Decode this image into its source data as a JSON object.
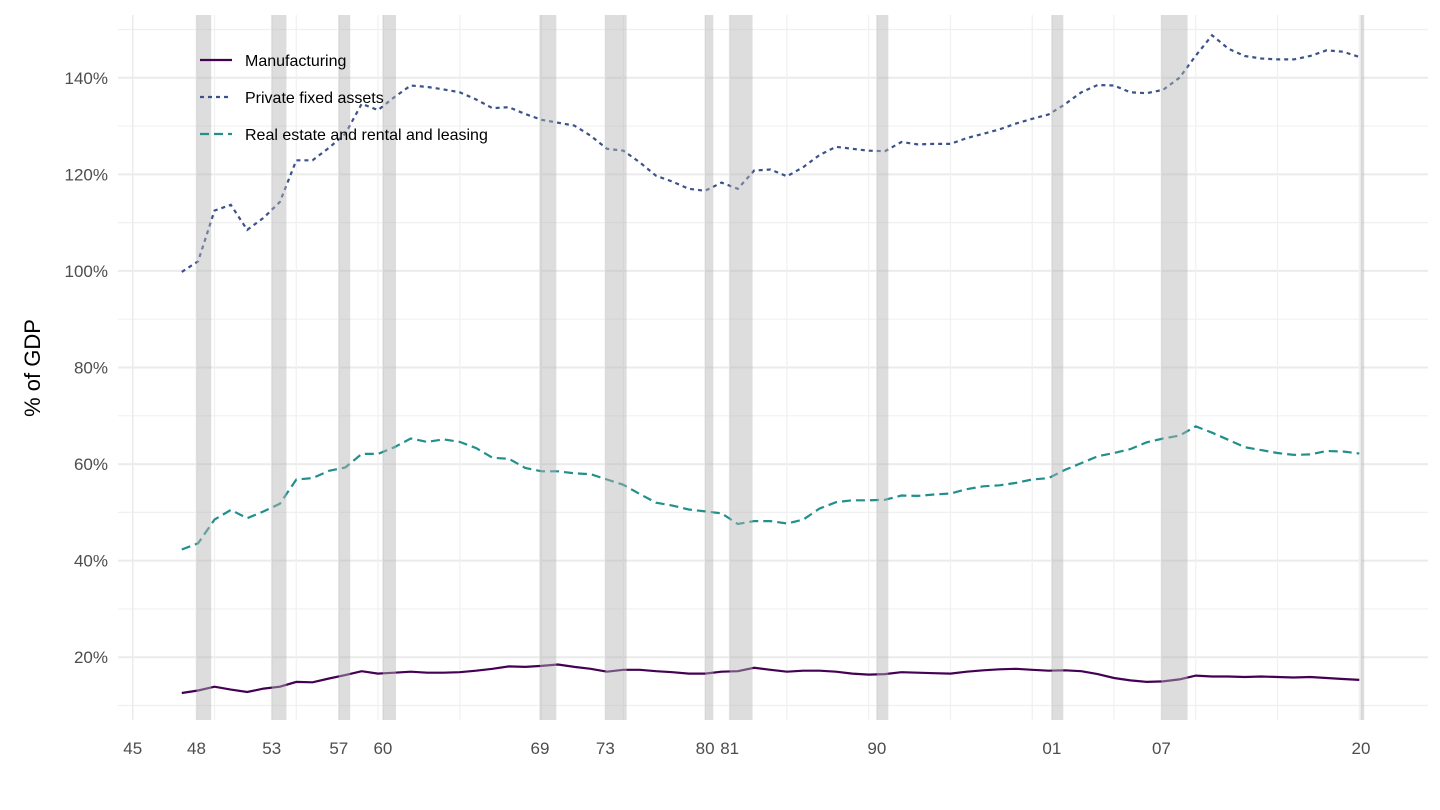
{
  "chart_data": {
    "type": "line",
    "title": "",
    "xlabel": "",
    "ylabel": "% of GDP",
    "ylim": [
      7,
      153
    ],
    "xlim": [
      1944.1,
      2024.2
    ],
    "y_ticks": [
      20,
      40,
      60,
      80,
      100,
      120,
      140
    ],
    "y_tick_labels": [
      "20%",
      "40%",
      "60%",
      "80%",
      "100%",
      "120%",
      "140%"
    ],
    "x_ticks": [
      1945,
      1948.9,
      1953.5,
      1957.6,
      1960.3,
      1969.9,
      1973.9,
      1980.0,
      1981.5,
      1990.5,
      2001.2,
      2007.9,
      2020.1
    ],
    "x_tick_labels": [
      "45",
      "48",
      "53",
      "57",
      "60",
      "69",
      "73",
      "80",
      "81",
      "90",
      "01",
      "07",
      "20"
    ],
    "grid": true,
    "legend_position": "top-left",
    "recession_shading": [
      [
        1948.9,
        1949.8
      ],
      [
        1953.5,
        1954.4
      ],
      [
        1957.6,
        1958.3
      ],
      [
        1960.3,
        1961.1
      ],
      [
        1969.9,
        1970.9
      ],
      [
        1973.9,
        1975.2
      ],
      [
        1980.0,
        1980.5
      ],
      [
        1981.5,
        1982.9
      ],
      [
        1990.5,
        1991.2
      ],
      [
        2001.2,
        2001.9
      ],
      [
        2007.9,
        2009.5
      ],
      [
        2020.1,
        2020.3
      ]
    ],
    "x_start_year": 1947,
    "series": [
      {
        "name": "Manufacturing",
        "color": "#440154",
        "dash": "solid",
        "values": [
          12.6,
          13.1,
          13.9,
          13.3,
          12.8,
          13.5,
          13.9,
          14.9,
          14.8,
          15.6,
          16.3,
          17.1,
          16.6,
          16.8,
          17.0,
          16.8,
          16.8,
          16.9,
          17.2,
          17.6,
          18.1,
          18.0,
          18.2,
          18.5,
          18.0,
          17.6,
          17.0,
          17.4,
          17.4,
          17.1,
          16.9,
          16.6,
          16.6,
          17.0,
          17.1,
          17.8,
          17.4,
          17.0,
          17.2,
          17.2,
          17.0,
          16.6,
          16.4,
          16.5,
          16.9,
          16.8,
          16.7,
          16.6,
          17.0,
          17.3,
          17.5,
          17.6,
          17.4,
          17.2,
          17.3,
          17.1,
          16.5,
          15.7,
          15.2,
          14.9,
          15.0,
          15.4,
          16.2,
          16.0,
          16.0,
          15.9,
          16.0,
          15.9,
          15.8,
          15.9,
          15.7,
          15.5,
          15.3
        ]
      },
      {
        "name": "Private fixed assets",
        "color": "#3b528b",
        "dash": "dotted",
        "values": [
          99.8,
          102.0,
          112.5,
          113.7,
          108.5,
          111.0,
          114.3,
          122.9,
          122.9,
          125.5,
          128.4,
          134.6,
          133.3,
          136.0,
          138.4,
          138.1,
          137.6,
          137.0,
          135.5,
          133.7,
          133.9,
          132.5,
          131.3,
          130.7,
          130.1,
          128.0,
          125.3,
          124.9,
          122.5,
          119.7,
          118.5,
          117.0,
          116.6,
          118.3,
          117.0,
          120.8,
          121.0,
          119.6,
          121.5,
          124.0,
          125.7,
          125.3,
          124.9,
          124.8,
          126.7,
          126.2,
          126.3,
          126.3,
          127.5,
          128.4,
          129.3,
          130.5,
          131.5,
          132.4,
          134.5,
          137.0,
          138.5,
          138.4,
          137.0,
          136.8,
          137.5,
          140.0,
          144.6,
          148.8,
          146.0,
          144.5,
          144.0,
          143.8,
          143.8,
          144.5,
          145.7,
          145.4,
          144.3
        ]
      },
      {
        "name": "Real estate and rental and leasing",
        "color": "#21908c",
        "dash": "dashed",
        "values": [
          42.3,
          43.6,
          48.5,
          50.5,
          48.8,
          50.2,
          51.8,
          56.8,
          57.1,
          58.6,
          59.3,
          62.1,
          62.1,
          63.5,
          65.3,
          64.6,
          65.1,
          64.6,
          63.3,
          61.3,
          61.1,
          59.2,
          58.5,
          58.5,
          58.1,
          57.9,
          56.8,
          55.7,
          53.8,
          52.0,
          51.4,
          50.6,
          50.2,
          49.8,
          47.6,
          48.2,
          48.2,
          47.7,
          48.5,
          50.8,
          52.1,
          52.5,
          52.5,
          52.6,
          53.5,
          53.4,
          53.7,
          53.9,
          54.8,
          55.4,
          55.6,
          56.1,
          56.8,
          57.1,
          58.8,
          60.2,
          61.6,
          62.3,
          63.1,
          64.5,
          65.3,
          65.9,
          67.8,
          66.5,
          65.0,
          63.5,
          62.9,
          62.3,
          61.9,
          62.0,
          62.7,
          62.6,
          62.2
        ]
      }
    ]
  }
}
